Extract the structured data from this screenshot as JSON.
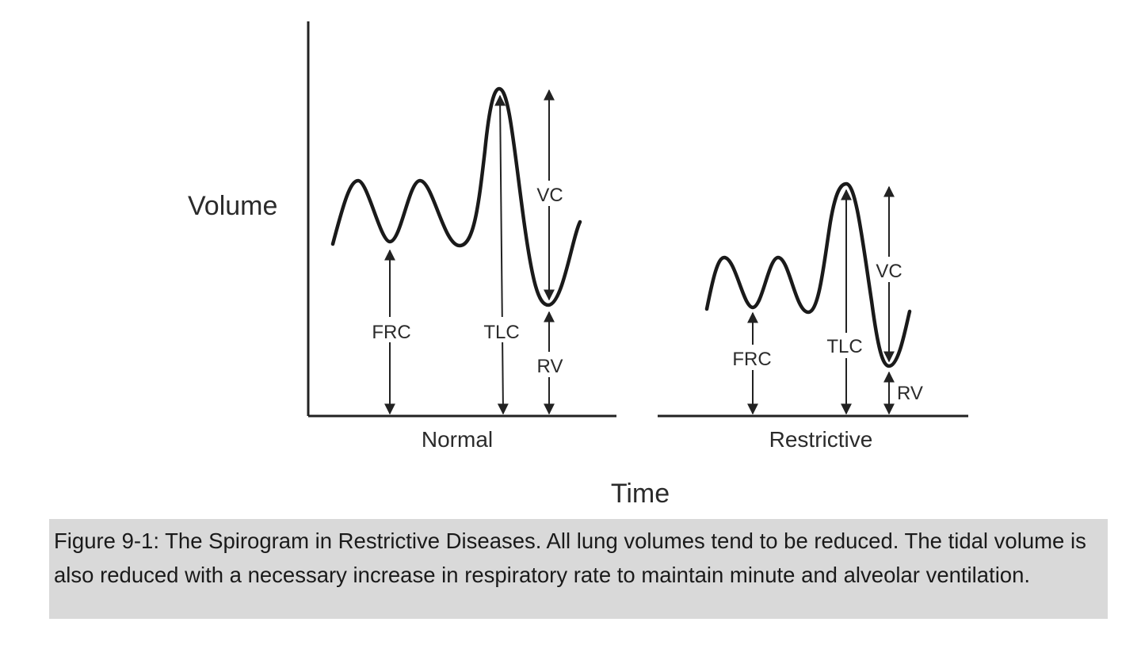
{
  "figure": {
    "y_axis_label": "Volume",
    "x_axis_label": "Time",
    "panels": [
      {
        "name": "Normal",
        "measurements": {
          "frc": "FRC",
          "tlc": "TLC",
          "vc": "VC",
          "rv": "RV"
        }
      },
      {
        "name": "Restrictive",
        "measurements": {
          "frc": "FRC",
          "tlc": "TLC",
          "vc": "VC",
          "rv": "RV"
        }
      }
    ]
  },
  "caption": {
    "text": "Figure 9-1: The Spirogram in Restrictive Diseases. All lung volumes tend to be reduced.  The tidal volume is also reduced with a necessary increase in respiratory rate to maintain minute and alveolar ventilation."
  }
}
